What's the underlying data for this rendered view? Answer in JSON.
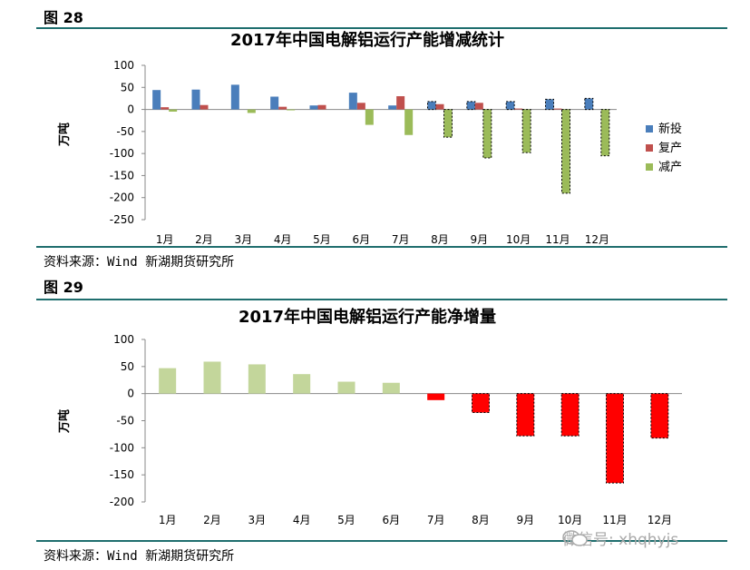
{
  "figures": [
    {
      "label": "图 28",
      "source": "资料来源：Wind 新湖期货研究所"
    },
    {
      "label": "图 29",
      "source": "资料来源：Wind 新湖期货研究所"
    }
  ],
  "chart_data": [
    {
      "type": "bar",
      "title": "2017年中国电解铝运行产能增减统计",
      "ylabel": "万吨",
      "xlabel": "",
      "ylim": [
        -250,
        100
      ],
      "yticks": [
        100,
        50,
        0,
        -50,
        -100,
        -150,
        -200,
        -250
      ],
      "categories": [
        "1月",
        "2月",
        "3月",
        "4月",
        "5月",
        "6月",
        "7月",
        "8月",
        "9月",
        "10月",
        "11月",
        "12月"
      ],
      "legend_position": "right",
      "series": [
        {
          "name": "新投",
          "color": "#4a7ebb",
          "values": [
            44,
            45,
            56,
            29,
            9,
            38,
            9,
            18,
            18,
            18,
            23,
            25
          ]
        },
        {
          "name": "复产",
          "color": "#c0504d",
          "values": [
            5,
            10,
            0,
            6,
            10,
            15,
            30,
            12,
            15,
            2,
            2,
            0
          ]
        },
        {
          "name": "减产",
          "color": "#9bbb59",
          "values": [
            -5,
            0,
            -8,
            -2,
            0,
            -35,
            -58,
            -63,
            -110,
            -98,
            -190,
            -105
          ]
        }
      ]
    },
    {
      "type": "bar",
      "title": "2017年中国电解铝运行产能净增量",
      "ylabel": "万吨",
      "xlabel": "",
      "ylim": [
        -200,
        100
      ],
      "yticks": [
        100,
        50,
        0,
        -50,
        -100,
        -150,
        -200
      ],
      "categories": [
        "1月",
        "2月",
        "3月",
        "4月",
        "5月",
        "6月",
        "7月",
        "8月",
        "9月",
        "10月",
        "11月",
        "12月"
      ],
      "positive_color": "#c3d69b",
      "negative_color": "#ff0000",
      "series": [
        {
          "name": "净增量",
          "values": [
            47,
            59,
            54,
            36,
            22,
            20,
            -12,
            -35,
            -78,
            -78,
            -165,
            -82
          ]
        }
      ]
    }
  ],
  "watermark": "微信号: xhqhyjs"
}
